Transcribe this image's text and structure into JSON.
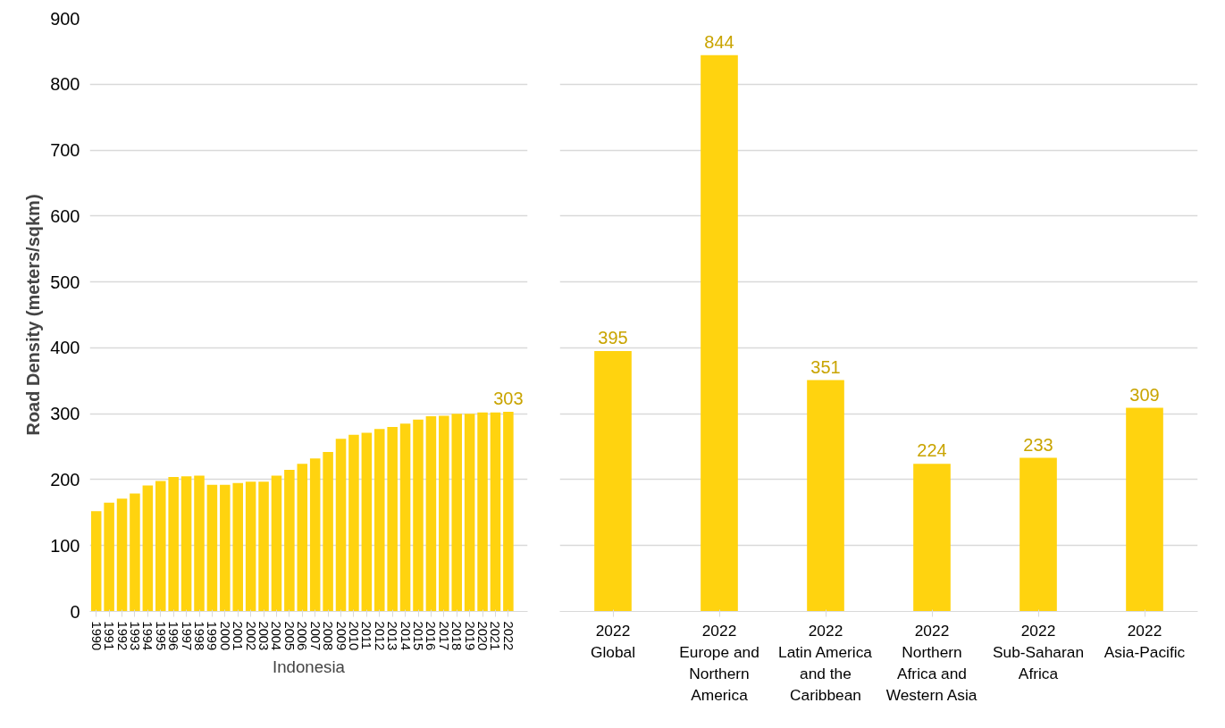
{
  "chart_data": [
    {
      "type": "bar",
      "ylabel": "Road Density (meters/sqkm)",
      "xlabel": "Indonesia",
      "categories": [
        "1990",
        "1991",
        "1992",
        "1993",
        "1994",
        "1995",
        "1996",
        "1997",
        "1998",
        "1999",
        "2000",
        "2001",
        "2002",
        "2003",
        "2004",
        "2005",
        "2006",
        "2007",
        "2008",
        "2009",
        "2010",
        "2011",
        "2012",
        "2013",
        "2014",
        "2015",
        "2016",
        "2017",
        "2018",
        "2019",
        "2020",
        "2021",
        "2022"
      ],
      "series": [
        {
          "color": "#ffd30f",
          "values": [
            152,
            165,
            171,
            179,
            191,
            198,
            204,
            205,
            206,
            192,
            192,
            195,
            197,
            197,
            206,
            215,
            224,
            232,
            242,
            262,
            268,
            271,
            277,
            280,
            285,
            291,
            296,
            297,
            300,
            300,
            302,
            302,
            303
          ],
          "value_labels": [
            null,
            null,
            null,
            null,
            null,
            null,
            null,
            null,
            null,
            null,
            null,
            null,
            null,
            null,
            null,
            null,
            null,
            null,
            null,
            null,
            null,
            null,
            null,
            null,
            null,
            null,
            null,
            null,
            null,
            null,
            null,
            null,
            "303"
          ]
        }
      ],
      "ylim": [
        0,
        900
      ],
      "yticks": [
        0,
        100,
        200,
        300,
        400,
        500,
        600,
        700,
        800,
        900
      ],
      "grid": "y"
    },
    {
      "type": "bar",
      "categories": [
        "2022\nGlobal",
        "2022\nEurope and Northern America",
        "2022\nLatin America and the Caribbean",
        "2022\nNorthern Africa and Western Asia",
        "2022\nSub-Saharan Africa",
        "2022\nAsia-Pacific"
      ],
      "series": [
        {
          "color": "#ffd30f",
          "values": [
            395,
            844,
            351,
            224,
            233,
            309
          ]
        }
      ],
      "ylim": [
        0,
        900
      ],
      "yticks": [
        0,
        100,
        200,
        300,
        400,
        500,
        600,
        700,
        800,
        900
      ],
      "grid": "y",
      "data_labels": true,
      "tick_labels": "x"
    }
  ]
}
